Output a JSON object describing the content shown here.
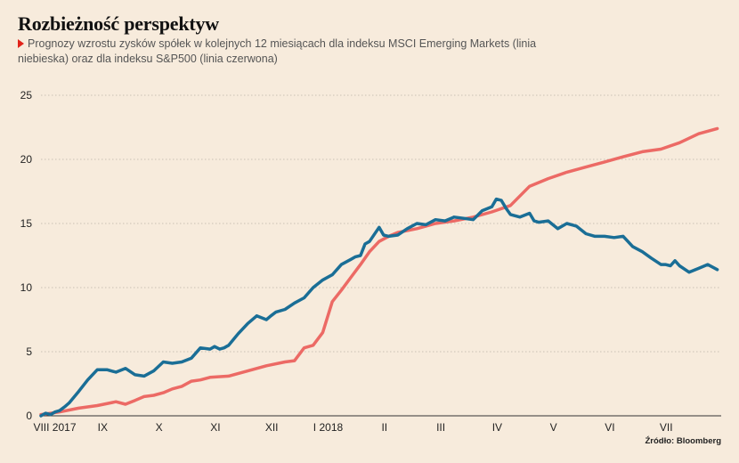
{
  "title": "Rozbieżność perspektyw",
  "subtitle": "Prognozy wzrostu zysków spółek w kolejnych 12 miesiącach dla indeksu MSCI Emerging Markets (linia niebieska) oraz dla indeksu S&P500 (linia czerwona)",
  "source": "Źródło: Bloomberg",
  "colors": {
    "background": "#f7ebdc",
    "msci_em": "#1a6e96",
    "sp500": "#ec6a65",
    "grid": "#c9c0b3",
    "marker": "#e2231a"
  },
  "chart_data": {
    "type": "line",
    "title": "Rozbieżność perspektyw",
    "xlabel": "",
    "ylabel": "",
    "ylim": [
      0,
      25
    ],
    "xlim": [
      0,
      12.07
    ],
    "yticks": [
      0,
      5,
      10,
      15,
      20,
      25
    ],
    "xticks": [
      {
        "x": 0.15,
        "label": "VIII 2017"
      },
      {
        "x": 1.0,
        "label": "IX"
      },
      {
        "x": 2.0,
        "label": "X"
      },
      {
        "x": 3.0,
        "label": "XI"
      },
      {
        "x": 4.0,
        "label": "XII"
      },
      {
        "x": 5.0,
        "label": "I 2018"
      },
      {
        "x": 6.0,
        "label": "II"
      },
      {
        "x": 7.0,
        "label": "III"
      },
      {
        "x": 8.0,
        "label": "IV"
      },
      {
        "x": 9.0,
        "label": "V"
      },
      {
        "x": 10.0,
        "label": "VI"
      },
      {
        "x": 11.0,
        "label": "VII"
      }
    ],
    "grid": "horizontal dotted",
    "series": [
      {
        "color": "#ec6a65",
        "x": [
          0.0,
          0.33,
          0.67,
          1.0,
          1.33,
          1.5,
          1.67,
          1.83,
          2.0,
          2.17,
          2.33,
          2.5,
          2.67,
          2.83,
          3.0,
          3.33,
          3.67,
          4.0,
          4.33,
          4.5,
          4.67,
          4.83,
          5.0,
          5.17,
          5.33,
          5.5,
          5.67,
          5.83,
          6.0,
          6.17,
          6.33,
          6.67,
          7.0,
          7.33,
          7.67,
          8.0,
          8.33,
          8.67,
          9.0,
          9.33,
          9.67,
          10.0,
          10.33,
          10.67,
          11.0,
          11.33,
          11.67,
          12.0
        ],
        "values": [
          0.1,
          0.3,
          0.6,
          0.8,
          1.1,
          0.9,
          1.2,
          1.5,
          1.6,
          1.8,
          2.1,
          2.3,
          2.7,
          2.8,
          3.0,
          3.1,
          3.5,
          3.9,
          4.2,
          4.3,
          5.3,
          5.5,
          6.5,
          8.9,
          9.8,
          10.8,
          11.8,
          12.8,
          13.6,
          14.0,
          14.3,
          14.6,
          15.0,
          15.2,
          15.5,
          15.9,
          16.4,
          17.9,
          18.5,
          19.0,
          19.4,
          19.8,
          20.2,
          20.6,
          20.8,
          21.3,
          22.0,
          22.4
        ]
      },
      {
        "color": "#1a6e96",
        "x": [
          0.0,
          0.08,
          0.17,
          0.25,
          0.33,
          0.42,
          0.5,
          0.67,
          0.83,
          1.0,
          1.17,
          1.33,
          1.5,
          1.67,
          1.83,
          2.0,
          2.17,
          2.33,
          2.5,
          2.67,
          2.83,
          3.0,
          3.08,
          3.17,
          3.25,
          3.33,
          3.5,
          3.67,
          3.83,
          4.0,
          4.08,
          4.17,
          4.33,
          4.5,
          4.67,
          4.83,
          5.0,
          5.17,
          5.33,
          5.5,
          5.58,
          5.67,
          5.75,
          5.83,
          6.0,
          6.08,
          6.17,
          6.33,
          6.5,
          6.67,
          6.83,
          7.0,
          7.17,
          7.33,
          7.5,
          7.67,
          7.83,
          8.0,
          8.08,
          8.17,
          8.25,
          8.33,
          8.5,
          8.67,
          8.75,
          8.83,
          9.0,
          9.17,
          9.33,
          9.5,
          9.67,
          9.83,
          10.0,
          10.17,
          10.33,
          10.5,
          10.67,
          10.83,
          11.0,
          11.08,
          11.17,
          11.25,
          11.33,
          11.5,
          11.67,
          11.83,
          12.0
        ],
        "values": [
          0.0,
          0.2,
          0.1,
          0.3,
          0.4,
          0.7,
          1.0,
          1.9,
          2.8,
          3.6,
          3.6,
          3.4,
          3.7,
          3.2,
          3.1,
          3.5,
          4.2,
          4.1,
          4.2,
          4.5,
          5.3,
          5.2,
          5.4,
          5.2,
          5.3,
          5.5,
          6.4,
          7.2,
          7.8,
          7.5,
          7.8,
          8.1,
          8.3,
          8.8,
          9.2,
          10.0,
          10.6,
          11.0,
          11.8,
          12.2,
          12.4,
          12.5,
          13.4,
          13.6,
          14.7,
          14.1,
          14.0,
          14.1,
          14.6,
          15.0,
          14.9,
          15.3,
          15.2,
          15.5,
          15.4,
          15.3,
          16.0,
          16.3,
          16.9,
          16.8,
          16.2,
          15.7,
          15.5,
          15.8,
          15.2,
          15.1,
          15.2,
          14.6,
          15.0,
          14.8,
          14.2,
          14.0,
          14.0,
          13.9,
          14.0,
          13.2,
          12.8,
          12.3,
          11.8,
          11.8,
          11.7,
          12.1,
          11.7,
          11.2,
          11.5,
          11.8,
          11.4
        ]
      }
    ]
  }
}
